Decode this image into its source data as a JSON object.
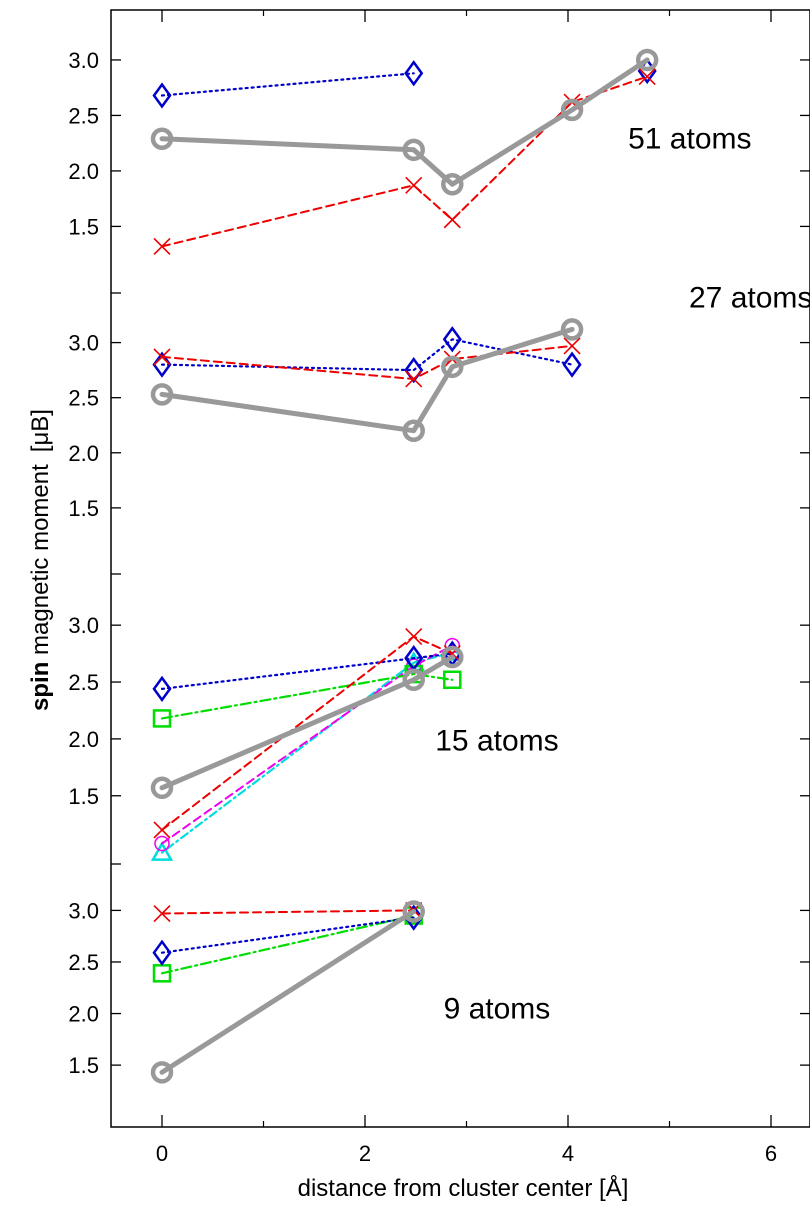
{
  "chart_data": {
    "type": "line",
    "xlabel": "distance from cluster center  [Å]",
    "ylabel_bold": "spin",
    "ylabel_rest": " magnetic moment",
    "ylabel_unit": "[μB]",
    "xlim": [
      -0.5,
      6.4
    ],
    "x_ticks": [
      0,
      2,
      4,
      6
    ],
    "y_ticks": [
      1.5,
      2.0,
      2.5,
      3.0
    ],
    "y_tick_labels": [
      "1.5",
      "2.0",
      "2.5",
      "3.0"
    ],
    "panels": [
      {
        "label": "51 atoms",
        "ylim": [
          0.9,
          3.45
        ],
        "label_pos": [
          5.2,
          2.2
        ],
        "series": [
          {
            "style": "gray",
            "x": [
              0,
              2.48,
              2.86,
              4.04,
              4.78
            ],
            "y": [
              2.29,
              2.19,
              1.88,
              2.55,
              3.0
            ]
          },
          {
            "style": "red",
            "x": [
              0,
              2.48,
              2.86,
              4.04,
              4.78
            ],
            "y": [
              1.32,
              1.87,
              1.56,
              2.62,
              2.85
            ]
          },
          {
            "style": "blue",
            "x": [
              0,
              2.48
            ],
            "y": [
              2.68,
              2.88
            ]
          },
          {
            "style": "blue-marker",
            "x": [
              4.78
            ],
            "y": [
              2.9
            ]
          }
        ]
      },
      {
        "label": "27 atoms",
        "ylim": [
          0.9,
          3.45
        ],
        "label_pos": [
          5.8,
          3.32
        ],
        "series": [
          {
            "style": "gray",
            "x": [
              0,
              2.48,
              2.86,
              4.04
            ],
            "y": [
              2.53,
              2.2,
              2.78,
              3.12
            ]
          },
          {
            "style": "red",
            "x": [
              0,
              2.48,
              2.86,
              4.04
            ],
            "y": [
              2.87,
              2.67,
              2.85,
              2.97
            ]
          },
          {
            "style": "blue",
            "x": [
              0,
              2.48,
              2.86,
              4.04
            ],
            "y": [
              2.8,
              2.75,
              3.03,
              2.8
            ]
          }
        ]
      },
      {
        "label": "15 atoms",
        "ylim": [
          0.9,
          3.45
        ],
        "label_pos": [
          3.3,
          1.9
        ],
        "series": [
          {
            "style": "gray",
            "x": [
              0,
              2.48,
              2.86
            ],
            "y": [
              1.57,
              2.52,
              2.72
            ]
          },
          {
            "style": "red",
            "x": [
              0,
              2.48,
              2.86
            ],
            "y": [
              1.2,
              2.9,
              2.75
            ]
          },
          {
            "style": "blue",
            "x": [
              0,
              2.48,
              2.86
            ],
            "y": [
              2.44,
              2.71,
              2.75
            ]
          },
          {
            "style": "green",
            "x": [
              0,
              2.48,
              2.86
            ],
            "y": [
              2.18,
              2.57,
              2.52
            ]
          },
          {
            "style": "magenta",
            "x": [
              0,
              2.48,
              2.86
            ],
            "y": [
              1.08,
              2.64,
              2.82
            ]
          },
          {
            "style": "cyan",
            "x": [
              0,
              2.48,
              2.86
            ],
            "y": [
              1.0,
              2.67,
              2.76
            ]
          }
        ]
      },
      {
        "label": "9 atoms",
        "ylim": [
          0.9,
          3.45
        ],
        "label_pos": [
          3.3,
          1.95
        ],
        "series": [
          {
            "style": "gray",
            "x": [
              0,
              2.48
            ],
            "y": [
              1.43,
              2.99
            ]
          },
          {
            "style": "red",
            "x": [
              0,
              2.48
            ],
            "y": [
              2.97,
              3.0
            ]
          },
          {
            "style": "blue",
            "x": [
              0,
              2.48
            ],
            "y": [
              2.59,
              2.93
            ]
          },
          {
            "style": "green",
            "x": [
              0,
              2.48
            ],
            "y": [
              2.39,
              2.95
            ]
          }
        ]
      }
    ],
    "colors": {
      "gray": "#999999",
      "red": "#ee0000",
      "blue": "#0000cc",
      "green": "#00dd00",
      "magenta": "#ee00ee",
      "cyan": "#00dddd"
    }
  }
}
